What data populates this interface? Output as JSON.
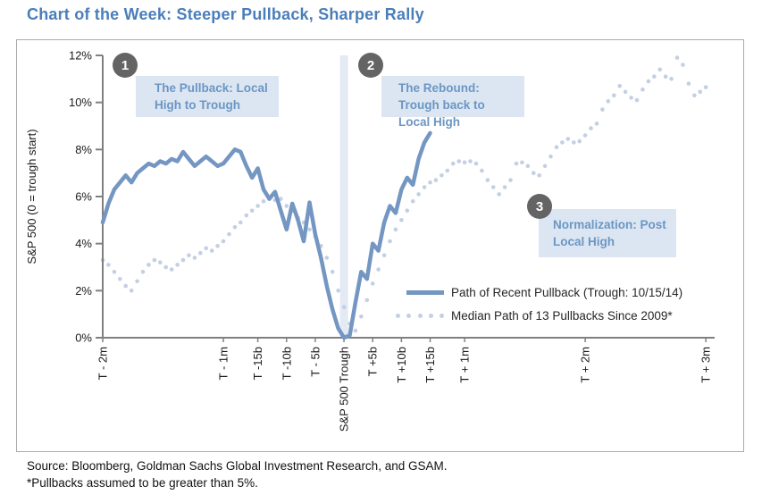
{
  "page": {
    "title": "Chart of the Week: Steeper Pullback, Sharper Rally",
    "source_line1": "Source: Bloomberg, Goldman Sachs Global Investment Research, and GSAM.",
    "source_line2": "*Pullbacks assumed to be greater than 5%."
  },
  "annotations": [
    {
      "number": "1",
      "text": "The Pullback: Local High to Trough"
    },
    {
      "number": "2",
      "text": "The Rebound: Trough back to Local High"
    },
    {
      "number": "3",
      "text": "Normalization: Post Local High"
    }
  ],
  "legend": [
    {
      "label": "Path of Recent Pullback (Trough: 10/15/14)",
      "style": "solid"
    },
    {
      "label": "Median Path of 13 Pullbacks Since 2009*",
      "style": "dotted"
    }
  ],
  "colors": {
    "title": "#4a7eba",
    "recent_line": "#7496c2",
    "median_dots": "#c3cfe3",
    "annotation_bg": "#dce6f2",
    "annotation_text": "#6b96c4",
    "badge_bg": "#646464",
    "badge_text": "#ffffff",
    "axis": "#808080",
    "trough_band": "#e3eaf4",
    "tick_text": "#1a1a1a",
    "legend_text": "#262626",
    "source_text": "#111111",
    "figure_border": "#ababab"
  },
  "chart_data": {
    "type": "line",
    "title": "Chart of the Week: Steeper Pullback, Sharper Rally",
    "ylabel": "S&P 500 (0 = trough start)",
    "y_ticks": [
      "0%",
      "2%",
      "4%",
      "6%",
      "8%",
      "10%",
      "12%"
    ],
    "ylim": [
      0,
      12
    ],
    "xlim": [
      -42,
      64.5
    ],
    "x_unit": "business days relative to S&P 500 trough (T), b = business days, m = months",
    "x_tick_days": [
      -42,
      -21,
      -15,
      -10,
      -5,
      0,
      5,
      10,
      15,
      21,
      42,
      63
    ],
    "x_tick_labels": [
      "T - 2m",
      "T - 1m",
      "T -15b",
      "T -10b",
      "T - 5b",
      "S&P 500 Trough",
      "T +5b",
      "T +10b",
      "T +15b",
      "T + 1m",
      "T + 2m",
      "T + 3m"
    ],
    "grid": false,
    "legend_position": "inside lower right of plot",
    "trough_band_days": [
      -0.7,
      0.7
    ],
    "series": [
      {
        "name": "Path of Recent Pullback (Trough: 10/15/14)",
        "style": "solid",
        "x_start": -42,
        "x_step": 1,
        "values": [
          4.9,
          5.7,
          6.3,
          6.6,
          6.9,
          6.6,
          7.0,
          7.2,
          7.4,
          7.3,
          7.5,
          7.4,
          7.6,
          7.5,
          7.9,
          7.6,
          7.3,
          7.5,
          7.7,
          7.5,
          7.3,
          7.4,
          7.7,
          8.0,
          7.9,
          7.3,
          6.8,
          7.2,
          6.3,
          5.9,
          6.2,
          5.4,
          4.6,
          5.7,
          5.0,
          4.1,
          5.75,
          4.4,
          3.4,
          2.2,
          1.2,
          0.4,
          0.0,
          0.1,
          1.5,
          2.8,
          2.5,
          4.0,
          3.7,
          4.9,
          5.6,
          5.3,
          6.3,
          6.8,
          6.5,
          7.6,
          8.3,
          8.7
        ]
      },
      {
        "name": "Median Path of 13 Pullbacks Since 2009*",
        "style": "dotted",
        "x_start": -42,
        "x_step": 1,
        "values": [
          3.3,
          3.1,
          2.8,
          2.5,
          2.2,
          2.0,
          2.4,
          2.8,
          3.1,
          3.3,
          3.2,
          3.0,
          2.9,
          3.1,
          3.3,
          3.5,
          3.4,
          3.6,
          3.8,
          3.7,
          3.9,
          4.1,
          4.4,
          4.7,
          4.9,
          5.2,
          5.4,
          5.6,
          5.8,
          5.9,
          5.85,
          5.9,
          5.6,
          5.4,
          5.1,
          4.9,
          4.6,
          4.3,
          3.9,
          3.4,
          2.8,
          2.0,
          1.3,
          0.6,
          0.3,
          0.9,
          1.6,
          2.3,
          2.9,
          3.5,
          4.1,
          4.6,
          5.0,
          5.4,
          5.8,
          6.1,
          6.4,
          6.6,
          6.7,
          6.9,
          7.1,
          7.4,
          7.5,
          7.45,
          7.5,
          7.4,
          7.1,
          6.7,
          6.4,
          6.1,
          6.4,
          6.7,
          7.4,
          7.45,
          7.3,
          7.0,
          6.9,
          7.3,
          7.7,
          8.1,
          8.3,
          8.45,
          8.3,
          8.35,
          8.6,
          8.9,
          9.1,
          9.7,
          10.05,
          10.3,
          10.7,
          10.45,
          10.2,
          10.1,
          10.55,
          10.9,
          11.1,
          11.4,
          11.1,
          11.0,
          11.9,
          11.6,
          10.8,
          10.3,
          10.45,
          10.65
        ]
      }
    ]
  }
}
